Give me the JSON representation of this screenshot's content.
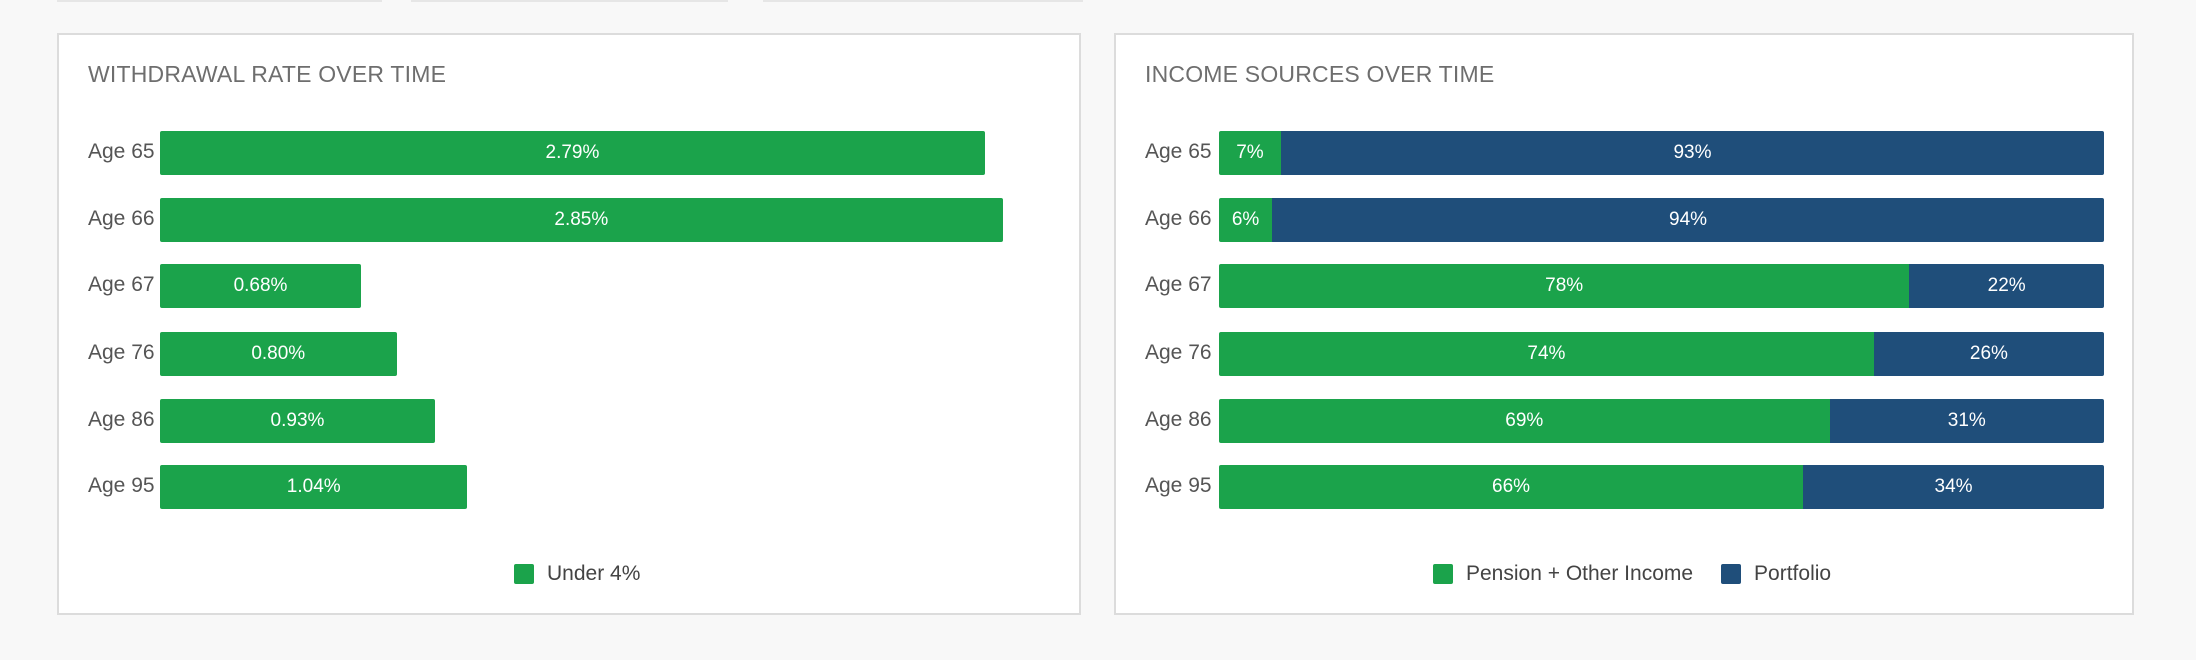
{
  "colors": {
    "green": "#1ba34b",
    "blue": "#1f4e7a"
  },
  "chart_data": [
    {
      "type": "bar",
      "title": "WITHDRAWAL RATE OVER TIME",
      "categories": [
        "Age 65",
        "Age 66",
        "Age 67",
        "Age 76",
        "Age 86",
        "Age 95"
      ],
      "series": [
        {
          "name": "Under 4%",
          "values": [
            2.79,
            2.85,
            0.68,
            0.8,
            0.93,
            1.04
          ],
          "labels": [
            "2.79%",
            "2.85%",
            "0.68%",
            "0.80%",
            "0.93%",
            "1.04%"
          ]
        }
      ],
      "orientation": "horizontal",
      "xlim": [
        0,
        3.0
      ],
      "grid": false,
      "legend": "bottom-center"
    },
    {
      "type": "bar",
      "title": "INCOME SOURCES OVER TIME",
      "categories": [
        "Age 65",
        "Age 66",
        "Age 67",
        "Age 76",
        "Age 86",
        "Age 95"
      ],
      "stacked": true,
      "orientation": "horizontal",
      "series": [
        {
          "name": "Pension + Other Income",
          "values": [
            7,
            6,
            78,
            74,
            69,
            66
          ],
          "labels": [
            "7%",
            "6%",
            "78%",
            "74%",
            "69%",
            "66%"
          ]
        },
        {
          "name": "Portfolio",
          "values": [
            93,
            94,
            22,
            26,
            31,
            34
          ],
          "labels": [
            "93%",
            "94%",
            "22%",
            "26%",
            "31%",
            "34%"
          ]
        }
      ],
      "xlim": [
        0,
        100
      ],
      "grid": false,
      "legend": "bottom-center"
    }
  ]
}
